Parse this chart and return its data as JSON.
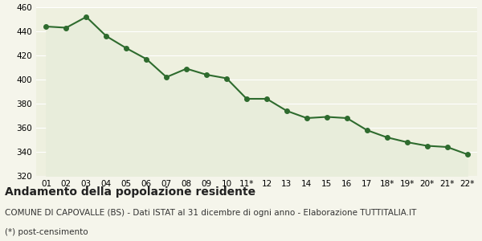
{
  "x_labels": [
    "01",
    "02",
    "03",
    "04",
    "05",
    "06",
    "07",
    "08",
    "09",
    "10",
    "11*",
    "12",
    "13",
    "14",
    "15",
    "16",
    "17",
    "18*",
    "19*",
    "20*",
    "21*",
    "22*"
  ],
  "y_values": [
    444,
    443,
    452,
    436,
    426,
    417,
    402,
    409,
    404,
    401,
    384,
    384,
    374,
    368,
    369,
    368,
    358,
    352,
    348,
    345,
    344,
    338
  ],
  "ylim": [
    320,
    460
  ],
  "yticks": [
    320,
    340,
    360,
    380,
    400,
    420,
    440,
    460
  ],
  "line_color": "#2e6b2e",
  "fill_color": "#e8eddb",
  "marker": "o",
  "marker_size": 4,
  "line_width": 1.5,
  "bg_color": "#f5f5eb",
  "plot_bg_color": "#eef0df",
  "grid_color": "#ffffff",
  "title": "Andamento della popolazione residente",
  "subtitle": "COMUNE DI CAPOVALLE (BS) - Dati ISTAT al 31 dicembre di ogni anno - Elaborazione TUTTITALIA.IT",
  "footnote": "(*) post-censimento",
  "title_fontsize": 10,
  "subtitle_fontsize": 7.5,
  "footnote_fontsize": 7.5,
  "tick_fontsize": 7.5
}
